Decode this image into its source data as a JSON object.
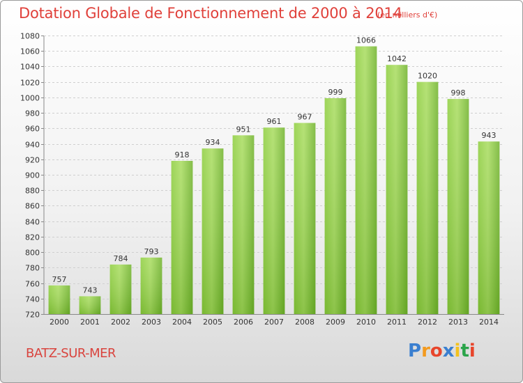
{
  "chart_data": {
    "type": "bar",
    "title": "Dotation Globale de Fonctionnement de 2000 à 2014",
    "unit": "(en milliers d'€)",
    "categories": [
      "2000",
      "2001",
      "2002",
      "2003",
      "2004",
      "2005",
      "2006",
      "2007",
      "2008",
      "2009",
      "2010",
      "2011",
      "2012",
      "2013",
      "2014"
    ],
    "values": [
      757,
      743,
      784,
      793,
      918,
      934,
      951,
      961,
      967,
      999,
      1066,
      1042,
      1020,
      998,
      943
    ],
    "ylim": [
      720,
      1080
    ],
    "yticks": [
      720,
      740,
      760,
      780,
      800,
      820,
      840,
      860,
      880,
      900,
      920,
      940,
      960,
      980,
      1000,
      1020,
      1040,
      1060,
      1080
    ],
    "grid": true,
    "bar_color": "#7dbf2f",
    "bar_color_light": "#a6d85a"
  },
  "commune": "BATZ-SUR-MER",
  "logo": {
    "letters": [
      "P",
      "r",
      "o",
      "x",
      "i",
      "t",
      "i"
    ],
    "colors": [
      "#3a7fd0",
      "#f39a1e",
      "#e8452b",
      "#3a7fd0",
      "#f3c21e",
      "#2aa44a",
      "#e8452b"
    ]
  }
}
